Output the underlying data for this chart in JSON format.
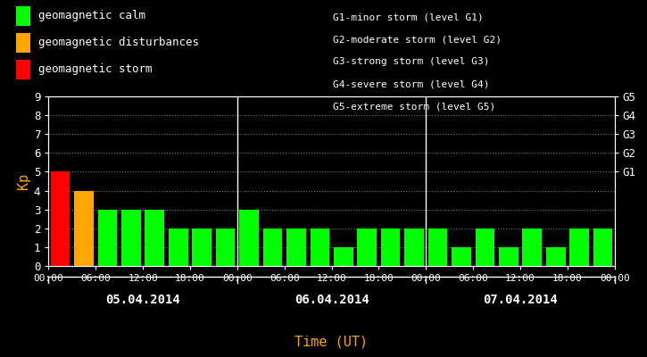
{
  "kp_values": [
    5,
    4,
    3,
    3,
    3,
    2,
    2,
    2,
    3,
    2,
    2,
    2,
    1,
    2,
    2,
    2,
    2,
    1,
    2,
    1,
    2,
    1,
    2,
    2
  ],
  "day_labels": [
    "05.04.2014",
    "06.04.2014",
    "07.04.2014"
  ],
  "time_ticks": [
    "00:00",
    "06:00",
    "12:00",
    "18:00",
    "00:00",
    "06:00",
    "12:00",
    "18:00",
    "00:00",
    "06:00",
    "12:00",
    "18:00",
    "00:00"
  ],
  "yticks_left": [
    0,
    1,
    2,
    3,
    4,
    5,
    6,
    7,
    8,
    9
  ],
  "yticks_right_labels": [
    "G1",
    "G2",
    "G3",
    "G4",
    "G5"
  ],
  "yticks_right_pos": [
    5,
    6,
    7,
    8,
    9
  ],
  "ylabel_left": "Kp",
  "xlabel": "Time (UT)",
  "background_color": "#000000",
  "bar_color_green": "#00ff00",
  "bar_color_orange": "#ffa500",
  "bar_color_red": "#ff0000",
  "text_color": "#ffffff",
  "xlabel_color": "#ffa500",
  "ylabel_color": "#ffa500",
  "legend_items": [
    {
      "label": "geomagnetic calm",
      "color": "#00ff00"
    },
    {
      "label": "geomagnetic disturbances",
      "color": "#ffa500"
    },
    {
      "label": "geomagnetic storm",
      "color": "#ff0000"
    }
  ],
  "right_text": [
    "G1-minor storm (level G1)",
    "G2-moderate storm (level G2)",
    "G3-strong storm (level G3)",
    "G4-severe storm (level G4)",
    "G5-extreme storm (level G5)"
  ],
  "day_dividers_bar_idx": [
    8,
    16
  ],
  "ylim": [
    0,
    9
  ],
  "n_bars": 24,
  "bars_per_day": 8
}
